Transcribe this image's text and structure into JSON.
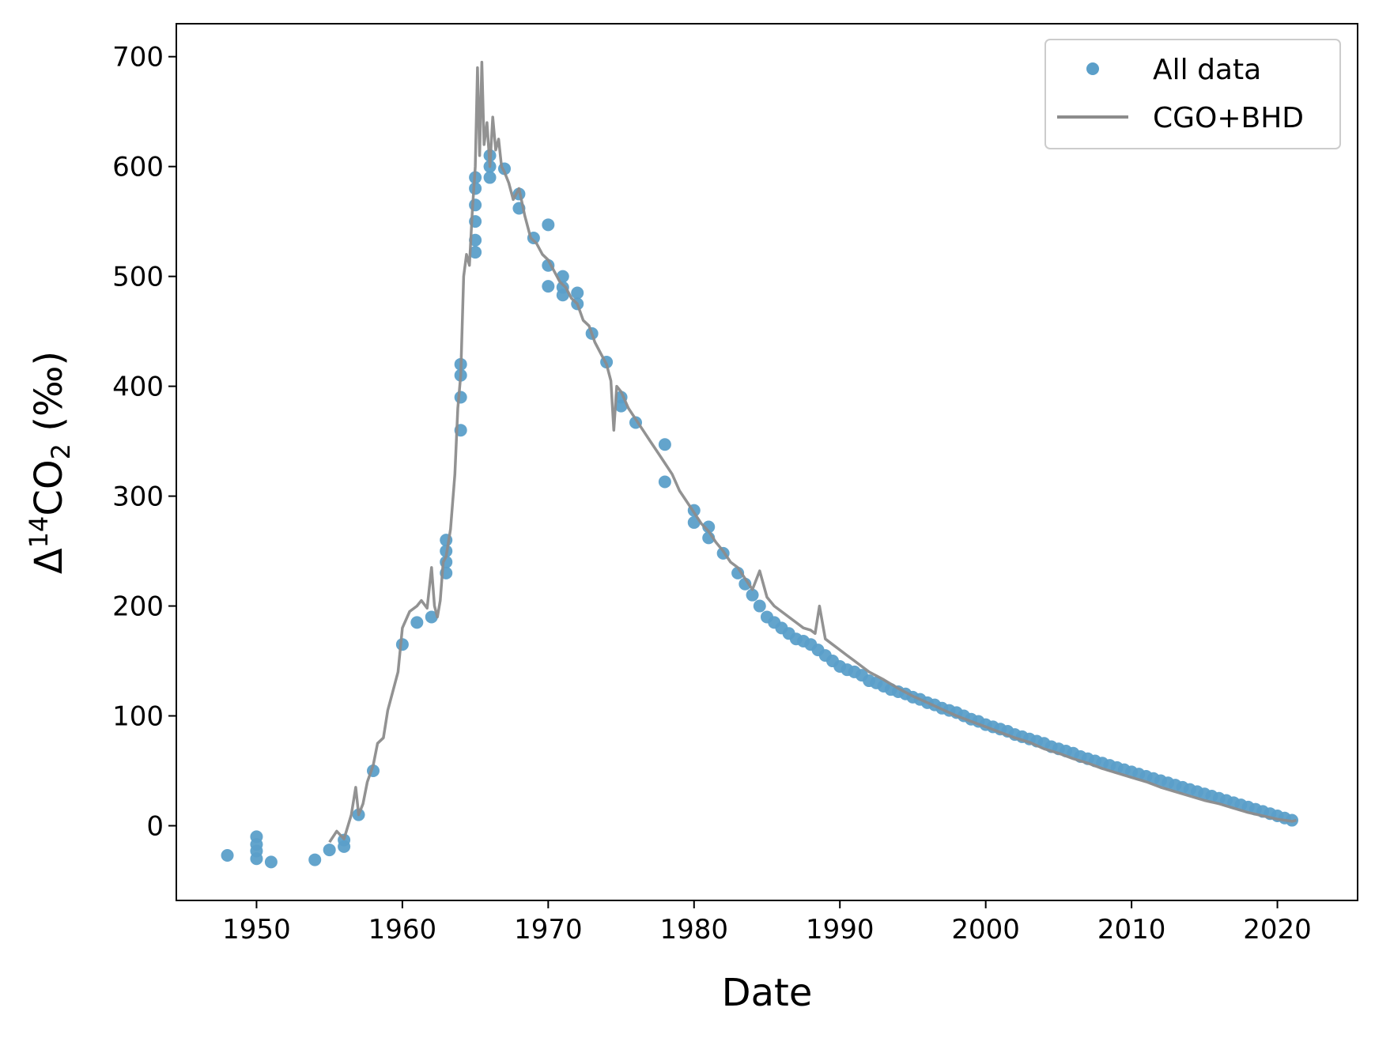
{
  "chart_data": {
    "type": "scatter",
    "xlabel": "Date",
    "ylabel": "Δ14CO2 (‰)",
    "xlim": [
      1944.5,
      2025.5
    ],
    "ylim": [
      -68,
      730
    ],
    "xticks": [
      "1950",
      "1960",
      "1970",
      "1980",
      "1990",
      "2000",
      "2010",
      "2020"
    ],
    "yticks": [
      "0",
      "100",
      "200",
      "300",
      "400",
      "500",
      "600",
      "700"
    ],
    "grid": false,
    "legend_position": "upper-right",
    "colors": {
      "scatter": "#5b9fc9",
      "line": "#8c8c8c"
    },
    "series": [
      {
        "name": "All data",
        "kind": "scatter",
        "x": [
          1948.0,
          1950.0,
          1950.0,
          1950.0,
          1950.0,
          1951.0,
          1954.0,
          1955.0,
          1956.0,
          1956.0,
          1957.0,
          1958.0,
          1960.0,
          1961.0,
          1962.0,
          1963.0,
          1963.0,
          1963.0,
          1963.0,
          1964.0,
          1964.0,
          1964.0,
          1964.0,
          1965.0,
          1965.0,
          1965.0,
          1965.0,
          1965.0,
          1965.0,
          1966.0,
          1966.0,
          1966.0,
          1967.0,
          1968.0,
          1968.0,
          1969.0,
          1970.0,
          1970.0,
          1970.0,
          1971.0,
          1971.0,
          1971.0,
          1972.0,
          1972.0,
          1973.0,
          1974.0,
          1975.0,
          1975.0,
          1976.0,
          1978.0,
          1978.0,
          1980.0,
          1980.0,
          1981.0,
          1981.0,
          1982.0,
          1983.0,
          1983.5,
          1984.0,
          1984.5,
          1985.0,
          1985.5,
          1986.0,
          1986.5,
          1987.0,
          1987.5,
          1988.0,
          1988.5,
          1989.0,
          1989.5,
          1990.0,
          1990.5,
          1991.0,
          1991.5,
          1992.0,
          1992.5,
          1993.0,
          1993.5,
          1994.0,
          1994.5,
          1995.0,
          1995.5,
          1996.0,
          1996.5,
          1997.0,
          1997.5,
          1998.0,
          1998.5,
          1999.0,
          1999.5,
          2000.0,
          2000.5,
          2001.0,
          2001.5,
          2002.0,
          2002.5,
          2003.0,
          2003.5,
          2004.0,
          2004.5,
          2005.0,
          2005.5,
          2006.0,
          2006.5,
          2007.0,
          2007.5,
          2008.0,
          2008.5,
          2009.0,
          2009.5,
          2010.0,
          2010.5,
          2011.0,
          2011.5,
          2012.0,
          2012.5,
          2013.0,
          2013.5,
          2014.0,
          2014.5,
          2015.0,
          2015.5,
          2016.0,
          2016.5,
          2017.0,
          2017.5,
          2018.0,
          2018.5,
          2019.0,
          2019.5,
          2020.0,
          2020.5,
          2021.0
        ],
        "y": [
          -27,
          -10,
          -17,
          -23,
          -30,
          -33,
          -31,
          -22,
          -13,
          -19,
          10,
          50,
          165,
          185,
          190,
          260,
          250,
          240,
          230,
          420,
          410,
          390,
          360,
          590,
          580,
          565,
          550,
          533,
          522,
          610,
          600,
          590,
          598,
          575,
          562,
          535,
          547,
          510,
          491,
          500,
          490,
          483,
          485,
          475,
          448,
          422,
          390,
          382,
          367,
          347,
          313,
          287,
          276,
          272,
          262,
          248,
          230,
          220,
          210,
          200,
          190,
          185,
          180,
          175,
          170,
          168,
          165,
          160,
          155,
          150,
          145,
          142,
          140,
          137,
          132,
          130,
          127,
          124,
          122,
          120,
          117,
          115,
          112,
          110,
          107,
          105,
          103,
          100,
          97,
          95,
          92,
          90,
          88,
          86,
          83,
          81,
          79,
          77,
          75,
          72,
          70,
          68,
          66,
          63,
          61,
          59,
          57,
          55,
          53,
          51,
          49,
          47,
          45,
          43,
          41,
          39,
          37,
          35,
          33,
          31,
          29,
          27,
          25,
          23,
          21,
          19,
          17,
          15,
          13,
          11,
          9,
          7,
          5
        ]
      },
      {
        "name": "CGO+BHD",
        "kind": "line",
        "x": [
          1955.0,
          1955.5,
          1956.0,
          1956.5,
          1956.8,
          1957.0,
          1957.3,
          1957.6,
          1958.0,
          1958.3,
          1958.7,
          1959.0,
          1959.3,
          1959.7,
          1960.0,
          1960.5,
          1961.0,
          1961.3,
          1961.7,
          1962.0,
          1962.2,
          1962.4,
          1962.6,
          1962.8,
          1963.0,
          1963.3,
          1963.6,
          1963.8,
          1964.0,
          1964.2,
          1964.4,
          1964.6,
          1964.8,
          1965.0,
          1965.15,
          1965.3,
          1965.45,
          1965.6,
          1965.8,
          1966.0,
          1966.2,
          1966.4,
          1966.6,
          1966.8,
          1967.0,
          1967.3,
          1967.6,
          1968.0,
          1968.4,
          1968.8,
          1969.2,
          1969.6,
          1970.0,
          1970.4,
          1970.8,
          1971.2,
          1971.6,
          1972.0,
          1972.4,
          1972.8,
          1973.2,
          1973.6,
          1974.0,
          1974.3,
          1974.5,
          1974.7,
          1975.0,
          1975.5,
          1976.0,
          1976.5,
          1977.0,
          1977.5,
          1978.0,
          1978.5,
          1979.0,
          1979.5,
          1980.0,
          1980.5,
          1981.0,
          1981.5,
          1982.0,
          1982.5,
          1983.0,
          1983.5,
          1984.0,
          1984.5,
          1985.0,
          1985.5,
          1986.0,
          1986.5,
          1987.0,
          1987.5,
          1988.0,
          1988.3,
          1988.6,
          1989.0,
          1989.5,
          1990.0,
          1990.5,
          1991.0,
          1992.0,
          1993.0,
          1994.0,
          1995.0,
          1996.0,
          1997.0,
          1998.0,
          1999.0,
          2000.0,
          2001.0,
          2002.0,
          2003.0,
          2004.0,
          2005.0,
          2006.0,
          2007.0,
          2008.0,
          2009.0,
          2010.0,
          2011.0,
          2012.0,
          2013.0,
          2014.0,
          2015.0,
          2016.0,
          2017.0,
          2018.0,
          2019.0,
          2020.0,
          2021.0,
          2021.3
        ],
        "y": [
          -15,
          -5,
          -12,
          10,
          35,
          10,
          20,
          40,
          55,
          75,
          80,
          105,
          120,
          140,
          180,
          195,
          200,
          205,
          198,
          235,
          200,
          190,
          205,
          240,
          245,
          270,
          320,
          380,
          410,
          500,
          520,
          510,
          560,
          600,
          690,
          610,
          695,
          620,
          640,
          600,
          645,
          615,
          625,
          600,
          595,
          585,
          570,
          580,
          555,
          535,
          530,
          520,
          515,
          505,
          495,
          490,
          480,
          475,
          460,
          455,
          440,
          430,
          420,
          405,
          360,
          400,
          395,
          380,
          370,
          360,
          350,
          340,
          330,
          320,
          305,
          295,
          285,
          275,
          268,
          258,
          250,
          240,
          235,
          225,
          215,
          232,
          208,
          200,
          195,
          190,
          185,
          180,
          178,
          175,
          200,
          170,
          165,
          160,
          155,
          150,
          140,
          133,
          125,
          118,
          112,
          106,
          100,
          95,
          90,
          85,
          80,
          76,
          70,
          66,
          61,
          57,
          52,
          48,
          44,
          40,
          35,
          31,
          27,
          23,
          20,
          16,
          12,
          9,
          6,
          4,
          5
        ]
      }
    ]
  }
}
